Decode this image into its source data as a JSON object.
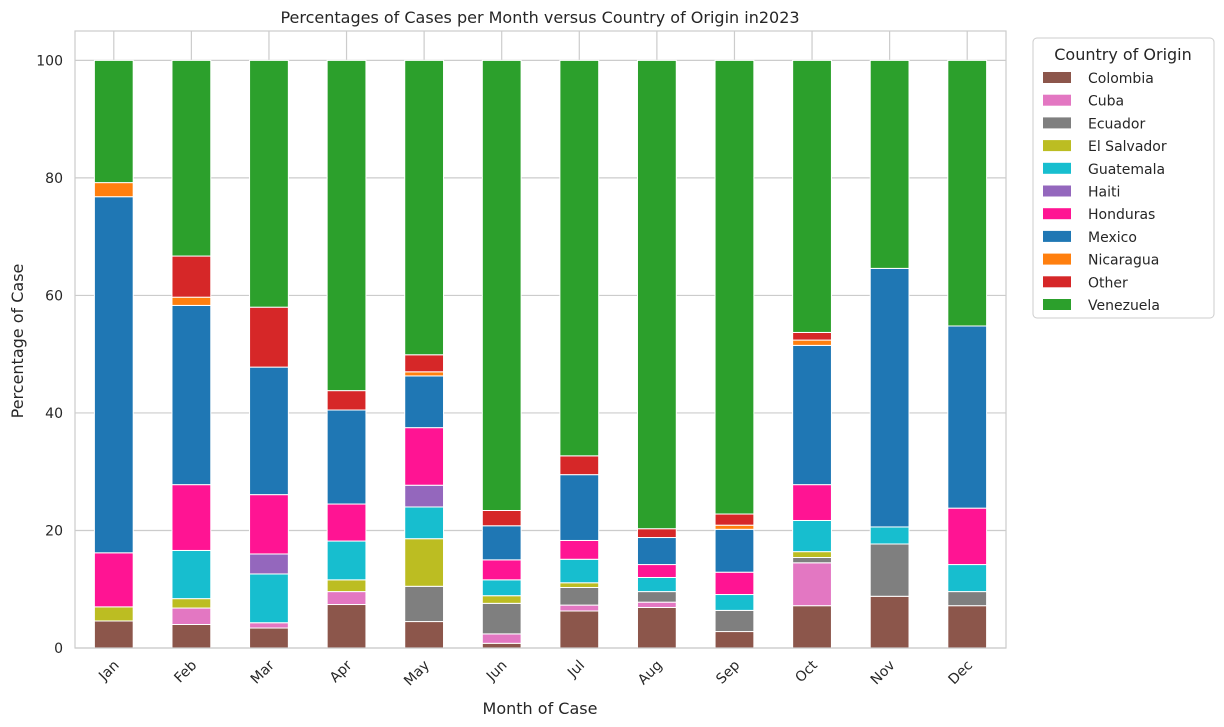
{
  "chart_data": {
    "type": "bar",
    "stacked": true,
    "title": "Percentages of Cases per Month versus Country of Origin in2023",
    "xlabel": "Month of Case",
    "ylabel": "Percentage of Case",
    "ylim": [
      0,
      105
    ],
    "yticks": [
      0,
      20,
      40,
      60,
      80,
      100
    ],
    "grid": true,
    "legend_title": "Country of Origin",
    "legend_position": "outside-right",
    "categories": [
      "Jan",
      "Feb",
      "Mar",
      "Apr",
      "May",
      "Jun",
      "Jul",
      "Aug",
      "Sep",
      "Oct",
      "Nov",
      "Dec"
    ],
    "series": [
      {
        "name": "Colombia",
        "color": "#8c564b",
        "values": [
          4.6,
          4.0,
          3.4,
          7.4,
          4.5,
          0.8,
          6.3,
          6.9,
          2.8,
          7.2,
          8.8,
          7.2
        ]
      },
      {
        "name": "Cuba",
        "color": "#e377c2",
        "values": [
          0,
          2.8,
          0.9,
          2.2,
          0,
          1.6,
          1.0,
          0.9,
          0,
          7.3,
          0,
          0
        ]
      },
      {
        "name": "Ecuador",
        "color": "#7f7f7f",
        "values": [
          0,
          0,
          0,
          0,
          6.0,
          5.2,
          3.0,
          1.8,
          3.6,
          0.9,
          8.9,
          2.4
        ]
      },
      {
        "name": "El Salvador",
        "color": "#bcbd22",
        "values": [
          2.4,
          1.6,
          0,
          2.0,
          8.1,
          1.3,
          0.8,
          0,
          0,
          1.0,
          0,
          0
        ]
      },
      {
        "name": "Guatemala",
        "color": "#17becf",
        "values": [
          0,
          8.2,
          8.3,
          6.6,
          5.4,
          2.7,
          4.0,
          2.4,
          2.7,
          5.3,
          2.9,
          4.6
        ]
      },
      {
        "name": "Haiti",
        "color": "#9467bd",
        "values": [
          0,
          0,
          3.4,
          0,
          3.7,
          0,
          0,
          0,
          0,
          0,
          0,
          0
        ]
      },
      {
        "name": "Honduras",
        "color": "#ff1493",
        "values": [
          9.2,
          11.2,
          10.1,
          6.3,
          9.8,
          3.4,
          3.2,
          2.2,
          3.8,
          6.1,
          0,
          9.6
        ]
      },
      {
        "name": "Mexico",
        "color": "#1f77b4",
        "values": [
          60.6,
          30.5,
          21.7,
          16.0,
          8.8,
          5.8,
          11.2,
          4.6,
          7.3,
          23.7,
          44.0,
          31.0
        ]
      },
      {
        "name": "Nicaragua",
        "color": "#ff7f0e",
        "values": [
          2.4,
          1.4,
          0,
          0,
          0.7,
          0,
          0,
          0,
          0.7,
          0.9,
          0,
          0
        ]
      },
      {
        "name": "Other",
        "color": "#d62728",
        "values": [
          0,
          7.0,
          10.2,
          3.3,
          2.9,
          2.6,
          3.2,
          1.5,
          1.9,
          1.3,
          0,
          0
        ]
      },
      {
        "name": "Venezuela",
        "color": "#2ca02c",
        "values": [
          20.8,
          33.3,
          42.0,
          56.2,
          50.1,
          76.6,
          67.3,
          79.7,
          77.2,
          46.3,
          35.4,
          45.2
        ]
      }
    ]
  }
}
